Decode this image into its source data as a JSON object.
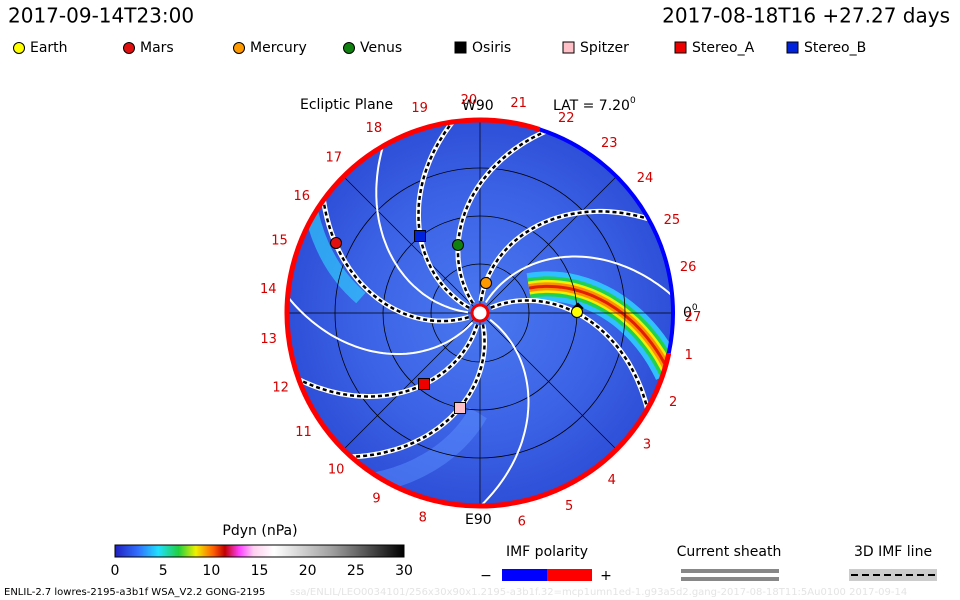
{
  "header": {
    "timestamp": "2017-09-14T23:00",
    "run_time": "2017-08-18T16 +27.27 days"
  },
  "legend": [
    {
      "name": "Earth",
      "color": "#ffff00",
      "marker": "circle"
    },
    {
      "name": "Mars",
      "color": "#e01010",
      "marker": "circle"
    },
    {
      "name": "Mercury",
      "color": "#ff9900",
      "marker": "circle"
    },
    {
      "name": "Venus",
      "color": "#108010",
      "marker": "circle"
    },
    {
      "name": "Osiris",
      "color": "#000000",
      "marker": "square"
    },
    {
      "name": "Spitzer",
      "color": "#ffc0c8",
      "marker": "square"
    },
    {
      "name": "Stereo_A",
      "color": "#ee0000",
      "marker": "square"
    },
    {
      "name": "Stereo_B",
      "color": "#0022dd",
      "marker": "square"
    }
  ],
  "plot": {
    "title": "Ecliptic Plane",
    "top_label": "W90",
    "bottom_label": "E90",
    "lat_label": "LAT = 7.20",
    "lat_sup": "0",
    "right_label": "0",
    "right_sup": "0",
    "rim_labels": [
      "1",
      "2",
      "3",
      "4",
      "5",
      "6",
      "8",
      "9",
      "10",
      "11",
      "12",
      "13",
      "14",
      "15",
      "16",
      "17",
      "18",
      "19",
      "20",
      "21",
      "22",
      "23",
      "24",
      "25",
      "26",
      "27"
    ]
  },
  "colorbar": {
    "title": "Pdyn (nPa)",
    "ticks": [
      0,
      5,
      10,
      15,
      20,
      25,
      30
    ]
  },
  "imf": {
    "title": "IMF polarity",
    "minus": "−",
    "plus": "+"
  },
  "sheath": {
    "title": "Current sheath"
  },
  "imf_line": {
    "title": "3D IMF line"
  },
  "footer": {
    "text": "ENLIL-2.7 lowres-2195-a3b1f WSA_V2.2 GONG-2195",
    "faint": "ssa/ENLIL/LEO0034101/256x30x90x1.2195-a3b1f.32=mcp1umn1ed-1.g93a5d2.gang-2017-08-18T11:5Au0100   2017-09-14"
  }
}
